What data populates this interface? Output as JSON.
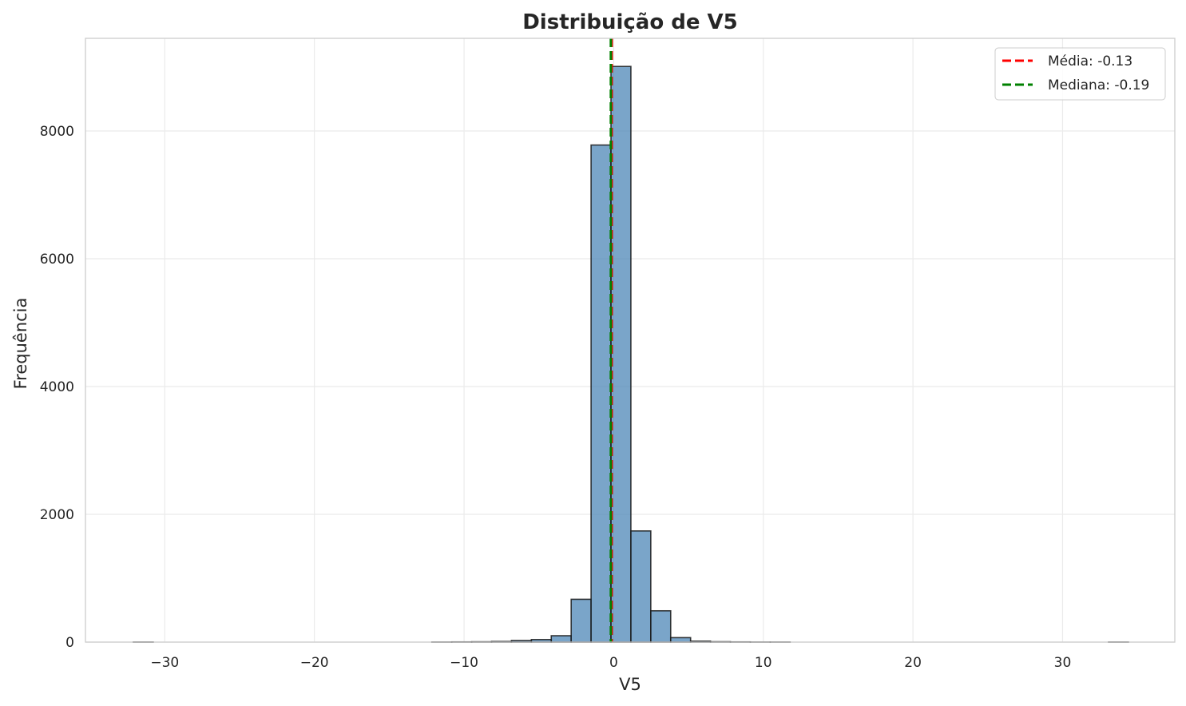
{
  "chart_data": {
    "type": "bar",
    "title": "Distribuição de V5",
    "xlabel": "V5",
    "ylabel": "Frequência",
    "xlim": [
      -35.3,
      37.5
    ],
    "ylim": [
      0,
      9450
    ],
    "xticks": [
      -30,
      -20,
      -10,
      0,
      10,
      20,
      30
    ],
    "xtick_labels": [
      "−30",
      "−20",
      "−10",
      "0",
      "10",
      "20",
      "30"
    ],
    "yticks": [
      0,
      2000,
      4000,
      6000,
      8000
    ],
    "ytick_labels": [
      "0",
      "2000",
      "4000",
      "6000",
      "8000"
    ],
    "grid": true,
    "legend_position": "top-right",
    "bin_edges": [
      -32.1,
      -30.77,
      -29.44,
      -28.11,
      -26.78,
      -25.45,
      -24.12,
      -22.79,
      -21.46,
      -20.13,
      -18.8,
      -17.47,
      -16.14,
      -14.81,
      -13.48,
      -12.15,
      -10.82,
      -9.49,
      -8.16,
      -6.83,
      -5.5,
      -4.17,
      -2.84,
      -1.51,
      -0.18,
      1.15,
      2.48,
      3.81,
      5.14,
      6.47,
      7.8,
      9.13,
      10.46,
      11.79,
      13.12,
      14.45,
      15.78,
      17.11,
      18.44,
      19.77,
      21.1,
      22.43,
      23.76,
      25.09,
      26.42,
      27.75,
      29.08,
      30.41,
      31.74,
      33.07,
      34.4
    ],
    "counts": [
      1,
      0,
      0,
      0,
      0,
      0,
      0,
      0,
      0,
      0,
      0,
      0,
      0,
      0,
      0,
      1,
      3,
      5,
      10,
      25,
      40,
      100,
      670,
      7780,
      9010,
      1740,
      490,
      70,
      15,
      6,
      3,
      1,
      1,
      0,
      0,
      0,
      0,
      0,
      0,
      0,
      0,
      0,
      0,
      0,
      0,
      0,
      0,
      0,
      0,
      1
    ],
    "bar_color": "#4682b4",
    "bar_edge_color": "#1a1a1a",
    "reference_lines": [
      {
        "name": "Média: -0.13",
        "x": -0.13,
        "color": "#ff0000"
      },
      {
        "name": "Mediana: -0.19",
        "x": -0.19,
        "color": "#008000"
      }
    ]
  }
}
